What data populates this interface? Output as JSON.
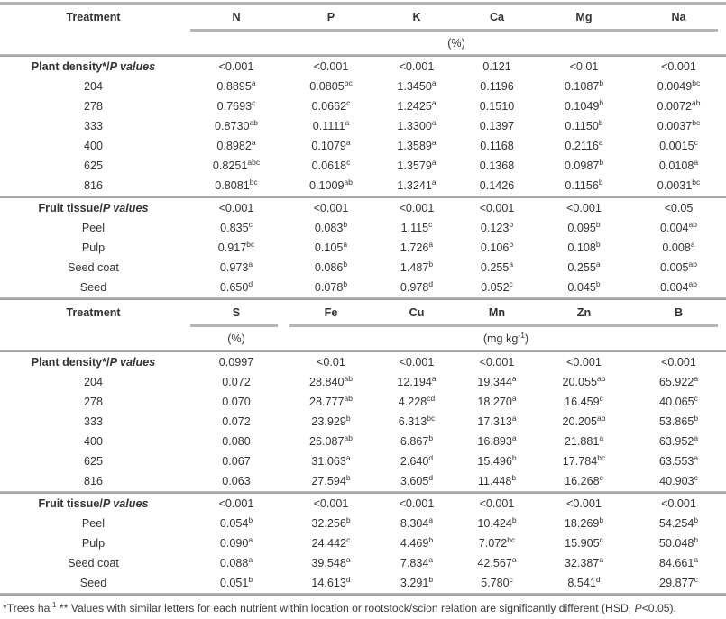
{
  "page": {
    "background": "#ffffff",
    "text_color": "#333333",
    "rule_color": "#b4b4b4"
  },
  "tables": [
    {
      "treatment_header": "Treatment",
      "nutrients": [
        "N",
        "P",
        "K",
        "Ca",
        "Mg",
        "Na"
      ],
      "unit_groups": [
        {
          "span": [
            0,
            5
          ],
          "parts": [
            {
              "t": "(%)"
            }
          ]
        }
      ],
      "sections": [
        {
          "label_parts": [
            {
              "t": "Plant density*/"
            },
            {
              "t": "P values",
              "italic": true
            }
          ],
          "p_values": [
            "<0.001",
            "<0.001",
            "<0.001",
            "0.121",
            "<0.01",
            "<0.001"
          ],
          "rows": [
            {
              "label": "204",
              "cells": [
                {
                  "v": "0.8895",
                  "s": "a"
                },
                {
                  "v": "0.0805",
                  "s": "bc"
                },
                {
                  "v": "1.3450",
                  "s": "a"
                },
                {
                  "v": "0.1196"
                },
                {
                  "v": "0.1087",
                  "s": "b"
                },
                {
                  "v": "0.0049",
                  "s": "bc"
                }
              ]
            },
            {
              "label": "278",
              "cells": [
                {
                  "v": "0.7693",
                  "s": "c"
                },
                {
                  "v": "0.0662",
                  "s": "c"
                },
                {
                  "v": "1.2425",
                  "s": "a"
                },
                {
                  "v": "0.1510"
                },
                {
                  "v": "0.1049",
                  "s": "b"
                },
                {
                  "v": "0.0072",
                  "s": "ab"
                }
              ]
            },
            {
              "label": "333",
              "cells": [
                {
                  "v": "0.8730",
                  "s": "ab"
                },
                {
                  "v": "0.1111",
                  "s": "a"
                },
                {
                  "v": "1.3300",
                  "s": "a"
                },
                {
                  "v": "0.1397"
                },
                {
                  "v": "0.1150",
                  "s": "b"
                },
                {
                  "v": "0.0037",
                  "s": "bc"
                }
              ]
            },
            {
              "label": "400",
              "cells": [
                {
                  "v": "0.8982",
                  "s": "a"
                },
                {
                  "v": "0.1079",
                  "s": "a"
                },
                {
                  "v": "1.3589",
                  "s": "a"
                },
                {
                  "v": "0.1168"
                },
                {
                  "v": "0.2116",
                  "s": "a"
                },
                {
                  "v": "0.0015",
                  "s": "c"
                }
              ]
            },
            {
              "label": "625",
              "cells": [
                {
                  "v": "0.8251",
                  "s": "abc"
                },
                {
                  "v": "0.0618",
                  "s": "c"
                },
                {
                  "v": "1.3579",
                  "s": "a"
                },
                {
                  "v": "0.1368"
                },
                {
                  "v": "0.0987",
                  "s": "b"
                },
                {
                  "v": "0.0108",
                  "s": "a"
                }
              ]
            },
            {
              "label": "816",
              "cells": [
                {
                  "v": "0.8081",
                  "s": "bc"
                },
                {
                  "v": "0.1009",
                  "s": "ab"
                },
                {
                  "v": "1.3241",
                  "s": "a"
                },
                {
                  "v": "0.1426"
                },
                {
                  "v": "0.1156",
                  "s": "b"
                },
                {
                  "v": "0.0031",
                  "s": "bc"
                }
              ]
            }
          ]
        },
        {
          "label_parts": [
            {
              "t": "Fruit tissue/"
            },
            {
              "t": "P values",
              "italic": true
            }
          ],
          "p_values": [
            "<0.001",
            "<0.001",
            "<0.001",
            "<0.001",
            "<0.001",
            "<0.05"
          ],
          "rows": [
            {
              "label": "Peel",
              "cells": [
                {
                  "v": "0.835",
                  "s": "c"
                },
                {
                  "v": "0.083",
                  "s": "b"
                },
                {
                  "v": "1.115",
                  "s": "c"
                },
                {
                  "v": "0.123",
                  "s": "b"
                },
                {
                  "v": "0.095",
                  "s": "b"
                },
                {
                  "v": "0.004",
                  "s": "ab"
                }
              ]
            },
            {
              "label": "Pulp",
              "cells": [
                {
                  "v": "0.917",
                  "s": "bc"
                },
                {
                  "v": "0.105",
                  "s": "a"
                },
                {
                  "v": "1.726",
                  "s": "a"
                },
                {
                  "v": "0.106",
                  "s": "b"
                },
                {
                  "v": "0.108",
                  "s": "b"
                },
                {
                  "v": "0.008",
                  "s": "a"
                }
              ]
            },
            {
              "label": "Seed coat",
              "cells": [
                {
                  "v": "0.973",
                  "s": "a"
                },
                {
                  "v": "0.086",
                  "s": "b"
                },
                {
                  "v": "1.487",
                  "s": "b"
                },
                {
                  "v": "0.255",
                  "s": "a"
                },
                {
                  "v": "0.255",
                  "s": "a"
                },
                {
                  "v": "0.005",
                  "s": "ab"
                }
              ]
            },
            {
              "label": "Seed",
              "cells": [
                {
                  "v": "0.650",
                  "s": "d"
                },
                {
                  "v": "0.078",
                  "s": "b"
                },
                {
                  "v": "0.978",
                  "s": "d"
                },
                {
                  "v": "0.052",
                  "s": "c"
                },
                {
                  "v": "0.045",
                  "s": "b"
                },
                {
                  "v": "0.004",
                  "s": "ab"
                }
              ]
            }
          ]
        }
      ]
    },
    {
      "treatment_header": "Treatment",
      "nutrients": [
        "S",
        "Fe",
        "Cu",
        "Mn",
        "Zn",
        "B"
      ],
      "unit_groups": [
        {
          "span": [
            0,
            0
          ],
          "parts": [
            {
              "t": "(%)"
            }
          ]
        },
        {
          "span": [
            1,
            5
          ],
          "parts": [
            {
              "t": "(mg kg"
            },
            {
              "t": "-1",
              "sup": true
            },
            {
              "t": ")"
            }
          ]
        }
      ],
      "sections": [
        {
          "label_parts": [
            {
              "t": "Plant density*/"
            },
            {
              "t": "P values",
              "italic": true
            }
          ],
          "p_values": [
            "0.0997",
            "<0.01",
            "<0.001",
            "<0.001",
            "<0.001",
            "<0.001"
          ],
          "rows": [
            {
              "label": "204",
              "cells": [
                {
                  "v": "0.072"
                },
                {
                  "v": "28.840",
                  "s": "ab"
                },
                {
                  "v": "12.194",
                  "s": "a"
                },
                {
                  "v": "19.344",
                  "s": "a"
                },
                {
                  "v": "20.055",
                  "s": "ab"
                },
                {
                  "v": "65.922",
                  "s": "a"
                }
              ]
            },
            {
              "label": "278",
              "cells": [
                {
                  "v": "0.070"
                },
                {
                  "v": "28.777",
                  "s": "ab"
                },
                {
                  "v": "4.228",
                  "s": "cd"
                },
                {
                  "v": "18.270",
                  "s": "a"
                },
                {
                  "v": "16.459",
                  "s": "c"
                },
                {
                  "v": "40.065",
                  "s": "c"
                }
              ]
            },
            {
              "label": "333",
              "cells": [
                {
                  "v": "0.072"
                },
                {
                  "v": "23.929",
                  "s": "b"
                },
                {
                  "v": "6.313",
                  "s": "bc"
                },
                {
                  "v": "17.313",
                  "s": "a"
                },
                {
                  "v": "20.205",
                  "s": "ab"
                },
                {
                  "v": "53.865",
                  "s": "b"
                }
              ]
            },
            {
              "label": "400",
              "cells": [
                {
                  "v": "0.080"
                },
                {
                  "v": "26.087",
                  "s": "ab"
                },
                {
                  "v": "6.867",
                  "s": "b"
                },
                {
                  "v": "16.893",
                  "s": "a"
                },
                {
                  "v": "21.881",
                  "s": "a"
                },
                {
                  "v": "63.952",
                  "s": "a"
                }
              ]
            },
            {
              "label": "625",
              "cells": [
                {
                  "v": "0.067"
                },
                {
                  "v": "31.063",
                  "s": "a"
                },
                {
                  "v": "2.640",
                  "s": "d"
                },
                {
                  "v": "15.496",
                  "s": "b"
                },
                {
                  "v": "17.784",
                  "s": "bc"
                },
                {
                  "v": "63.553",
                  "s": "a"
                }
              ]
            },
            {
              "label": "816",
              "cells": [
                {
                  "v": "0.063"
                },
                {
                  "v": "27.594",
                  "s": "b"
                },
                {
                  "v": "3.605",
                  "s": "d"
                },
                {
                  "v": "11.448",
                  "s": "b"
                },
                {
                  "v": "16.268",
                  "s": "c"
                },
                {
                  "v": "40.903",
                  "s": "c"
                }
              ]
            }
          ]
        },
        {
          "label_parts": [
            {
              "t": "Fruit tissue/"
            },
            {
              "t": "P values",
              "italic": true
            }
          ],
          "p_values": [
            "<0.001",
            "<0.001",
            "<0.001",
            "<0.001",
            "<0.001",
            "<0.001"
          ],
          "rows": [
            {
              "label": "Peel",
              "cells": [
                {
                  "v": "0.054",
                  "s": "b"
                },
                {
                  "v": "32.256",
                  "s": "b"
                },
                {
                  "v": "8.304",
                  "s": "a"
                },
                {
                  "v": "10.424",
                  "s": "b"
                },
                {
                  "v": "18.269",
                  "s": "b"
                },
                {
                  "v": "54.254",
                  "s": "b"
                }
              ]
            },
            {
              "label": "Pulp",
              "cells": [
                {
                  "v": "0.090",
                  "s": "a"
                },
                {
                  "v": "24.442",
                  "s": "c"
                },
                {
                  "v": "4.469",
                  "s": "b"
                },
                {
                  "v": "7.072",
                  "s": "bc"
                },
                {
                  "v": "15.905",
                  "s": "c"
                },
                {
                  "v": "50.048",
                  "s": "b"
                }
              ]
            },
            {
              "label": "Seed coat",
              "cells": [
                {
                  "v": "0.088",
                  "s": "a"
                },
                {
                  "v": "39.548",
                  "s": "a"
                },
                {
                  "v": "7.834",
                  "s": "a"
                },
                {
                  "v": "42.567",
                  "s": "a"
                },
                {
                  "v": "32.387",
                  "s": "a"
                },
                {
                  "v": "84.661",
                  "s": "a"
                }
              ]
            },
            {
              "label": "Seed",
              "cells": [
                {
                  "v": "0.051",
                  "s": "b"
                },
                {
                  "v": "14.613",
                  "s": "d"
                },
                {
                  "v": "3.291",
                  "s": "b"
                },
                {
                  "v": "5.780",
                  "s": "c"
                },
                {
                  "v": "8.541",
                  "s": "d"
                },
                {
                  "v": "29.877",
                  "s": "c"
                }
              ]
            }
          ]
        }
      ]
    }
  ],
  "footnote_parts": [
    {
      "t": "*Trees ha"
    },
    {
      "t": "-1",
      "sup": true
    },
    {
      "t": " ** Values with similar letters for each nutrient within location or rootstock/scion relation are significantly different (HSD, "
    },
    {
      "t": "P",
      "italic": true
    },
    {
      "t": "<0.05)."
    }
  ]
}
